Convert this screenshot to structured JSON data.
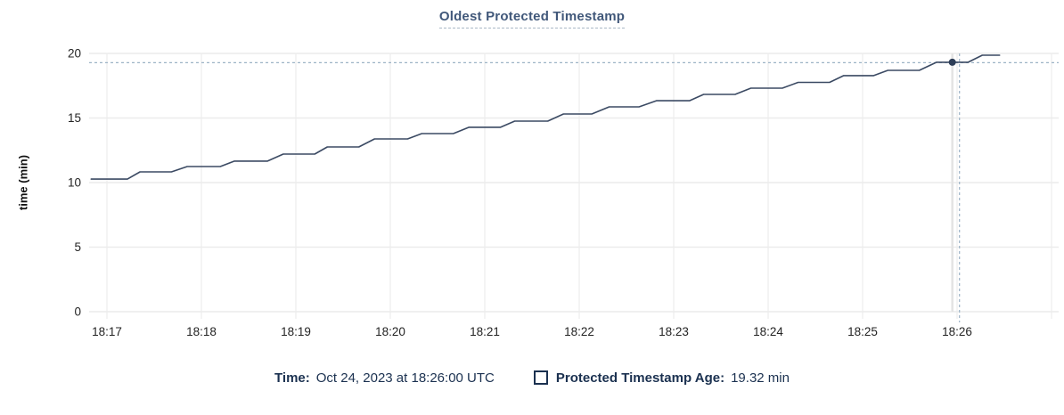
{
  "chart_data": {
    "type": "line",
    "title": "Oldest Protected Timestamp",
    "xlabel": "",
    "ylabel": "time (min)",
    "ylim": [
      0,
      20
    ],
    "yticks": [
      0,
      5,
      10,
      15,
      20
    ],
    "x_tick_labels": [
      "18:17",
      "18:18",
      "18:19",
      "18:20",
      "18:21",
      "18:22",
      "18:23",
      "18:24",
      "18:25",
      "18:26"
    ],
    "x_unit": "time of day (UTC)",
    "grid": true,
    "legend_position": "bottom",
    "series": [
      {
        "name": "Protected Timestamp Age",
        "unit": "min",
        "points_sec_after_1817_and_min": [
          [
            -10,
            10.27
          ],
          [
            13,
            10.27
          ],
          [
            21,
            10.83
          ],
          [
            41,
            10.83
          ],
          [
            51,
            11.24
          ],
          [
            72,
            11.24
          ],
          [
            81,
            11.66
          ],
          [
            102,
            11.66
          ],
          [
            112,
            12.21
          ],
          [
            132,
            12.21
          ],
          [
            140,
            12.76
          ],
          [
            160,
            12.76
          ],
          [
            170,
            13.38
          ],
          [
            191,
            13.38
          ],
          [
            200,
            13.79
          ],
          [
            220,
            13.79
          ],
          [
            230,
            14.28
          ],
          [
            250,
            14.28
          ],
          [
            259,
            14.76
          ],
          [
            280,
            14.76
          ],
          [
            290,
            15.31
          ],
          [
            308,
            15.31
          ],
          [
            319,
            15.86
          ],
          [
            338,
            15.86
          ],
          [
            349,
            16.34
          ],
          [
            370,
            16.34
          ],
          [
            379,
            16.83
          ],
          [
            399,
            16.83
          ],
          [
            409,
            17.31
          ],
          [
            429,
            17.31
          ],
          [
            439,
            17.76
          ],
          [
            459,
            17.76
          ],
          [
            468,
            18.28
          ],
          [
            487,
            18.28
          ],
          [
            496,
            18.69
          ],
          [
            516,
            18.69
          ],
          [
            527,
            19.32
          ],
          [
            547,
            19.32
          ],
          [
            556,
            19.86
          ],
          [
            567,
            19.86
          ]
        ]
      }
    ],
    "hover_point": {
      "time": "18:26:00",
      "t_sec": 537,
      "value_min": 19.32
    }
  },
  "footer": {
    "time_label": "Time:",
    "time_value": "Oct 24, 2023 at 18:26:00 UTC",
    "series_label": "Protected Timestamp Age:",
    "series_value": "19.32 min",
    "legend_swatch": "empty-square-outline"
  },
  "colors": {
    "title_text": "#41587a",
    "legend_text": "#1b3150",
    "series_line": "#3b4a63",
    "point_fill": "#2d3d57",
    "grid_line": "#ececec",
    "axis_tick": "#e0e0e0",
    "hover_line": "#e4e4e4",
    "crosshair_dashed": "#9db3c6",
    "axis_text": "#242424"
  }
}
